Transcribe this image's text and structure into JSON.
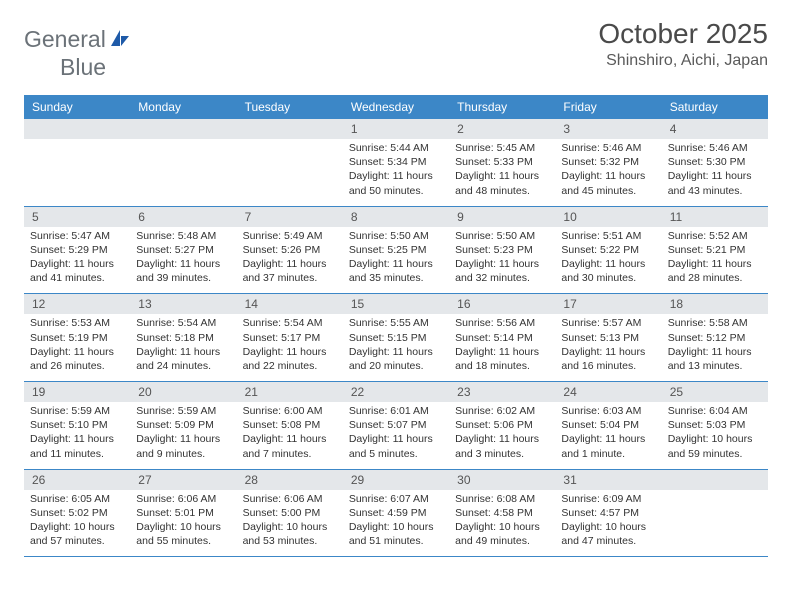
{
  "logo": {
    "part1": "General",
    "part2": "Blue"
  },
  "title": "October 2025",
  "location": "Shinshiro, Aichi, Japan",
  "colors": {
    "header_bg": "#3c87c7",
    "band_bg": "#e4e7ea",
    "rule": "#3c87c7",
    "logo_gray": "#6b7278",
    "logo_blue": "#1e5aa8"
  },
  "dayNames": [
    "Sunday",
    "Monday",
    "Tuesday",
    "Wednesday",
    "Thursday",
    "Friday",
    "Saturday"
  ],
  "weeks": [
    [
      {
        "num": "",
        "lines": []
      },
      {
        "num": "",
        "lines": []
      },
      {
        "num": "",
        "lines": []
      },
      {
        "num": "1",
        "lines": [
          "Sunrise: 5:44 AM",
          "Sunset: 5:34 PM",
          "Daylight: 11 hours",
          "and 50 minutes."
        ]
      },
      {
        "num": "2",
        "lines": [
          "Sunrise: 5:45 AM",
          "Sunset: 5:33 PM",
          "Daylight: 11 hours",
          "and 48 minutes."
        ]
      },
      {
        "num": "3",
        "lines": [
          "Sunrise: 5:46 AM",
          "Sunset: 5:32 PM",
          "Daylight: 11 hours",
          "and 45 minutes."
        ]
      },
      {
        "num": "4",
        "lines": [
          "Sunrise: 5:46 AM",
          "Sunset: 5:30 PM",
          "Daylight: 11 hours",
          "and 43 minutes."
        ]
      }
    ],
    [
      {
        "num": "5",
        "lines": [
          "Sunrise: 5:47 AM",
          "Sunset: 5:29 PM",
          "Daylight: 11 hours",
          "and 41 minutes."
        ]
      },
      {
        "num": "6",
        "lines": [
          "Sunrise: 5:48 AM",
          "Sunset: 5:27 PM",
          "Daylight: 11 hours",
          "and 39 minutes."
        ]
      },
      {
        "num": "7",
        "lines": [
          "Sunrise: 5:49 AM",
          "Sunset: 5:26 PM",
          "Daylight: 11 hours",
          "and 37 minutes."
        ]
      },
      {
        "num": "8",
        "lines": [
          "Sunrise: 5:50 AM",
          "Sunset: 5:25 PM",
          "Daylight: 11 hours",
          "and 35 minutes."
        ]
      },
      {
        "num": "9",
        "lines": [
          "Sunrise: 5:50 AM",
          "Sunset: 5:23 PM",
          "Daylight: 11 hours",
          "and 32 minutes."
        ]
      },
      {
        "num": "10",
        "lines": [
          "Sunrise: 5:51 AM",
          "Sunset: 5:22 PM",
          "Daylight: 11 hours",
          "and 30 minutes."
        ]
      },
      {
        "num": "11",
        "lines": [
          "Sunrise: 5:52 AM",
          "Sunset: 5:21 PM",
          "Daylight: 11 hours",
          "and 28 minutes."
        ]
      }
    ],
    [
      {
        "num": "12",
        "lines": [
          "Sunrise: 5:53 AM",
          "Sunset: 5:19 PM",
          "Daylight: 11 hours",
          "and 26 minutes."
        ]
      },
      {
        "num": "13",
        "lines": [
          "Sunrise: 5:54 AM",
          "Sunset: 5:18 PM",
          "Daylight: 11 hours",
          "and 24 minutes."
        ]
      },
      {
        "num": "14",
        "lines": [
          "Sunrise: 5:54 AM",
          "Sunset: 5:17 PM",
          "Daylight: 11 hours",
          "and 22 minutes."
        ]
      },
      {
        "num": "15",
        "lines": [
          "Sunrise: 5:55 AM",
          "Sunset: 5:15 PM",
          "Daylight: 11 hours",
          "and 20 minutes."
        ]
      },
      {
        "num": "16",
        "lines": [
          "Sunrise: 5:56 AM",
          "Sunset: 5:14 PM",
          "Daylight: 11 hours",
          "and 18 minutes."
        ]
      },
      {
        "num": "17",
        "lines": [
          "Sunrise: 5:57 AM",
          "Sunset: 5:13 PM",
          "Daylight: 11 hours",
          "and 16 minutes."
        ]
      },
      {
        "num": "18",
        "lines": [
          "Sunrise: 5:58 AM",
          "Sunset: 5:12 PM",
          "Daylight: 11 hours",
          "and 13 minutes."
        ]
      }
    ],
    [
      {
        "num": "19",
        "lines": [
          "Sunrise: 5:59 AM",
          "Sunset: 5:10 PM",
          "Daylight: 11 hours",
          "and 11 minutes."
        ]
      },
      {
        "num": "20",
        "lines": [
          "Sunrise: 5:59 AM",
          "Sunset: 5:09 PM",
          "Daylight: 11 hours",
          "and 9 minutes."
        ]
      },
      {
        "num": "21",
        "lines": [
          "Sunrise: 6:00 AM",
          "Sunset: 5:08 PM",
          "Daylight: 11 hours",
          "and 7 minutes."
        ]
      },
      {
        "num": "22",
        "lines": [
          "Sunrise: 6:01 AM",
          "Sunset: 5:07 PM",
          "Daylight: 11 hours",
          "and 5 minutes."
        ]
      },
      {
        "num": "23",
        "lines": [
          "Sunrise: 6:02 AM",
          "Sunset: 5:06 PM",
          "Daylight: 11 hours",
          "and 3 minutes."
        ]
      },
      {
        "num": "24",
        "lines": [
          "Sunrise: 6:03 AM",
          "Sunset: 5:04 PM",
          "Daylight: 11 hours",
          "and 1 minute."
        ]
      },
      {
        "num": "25",
        "lines": [
          "Sunrise: 6:04 AM",
          "Sunset: 5:03 PM",
          "Daylight: 10 hours",
          "and 59 minutes."
        ]
      }
    ],
    [
      {
        "num": "26",
        "lines": [
          "Sunrise: 6:05 AM",
          "Sunset: 5:02 PM",
          "Daylight: 10 hours",
          "and 57 minutes."
        ]
      },
      {
        "num": "27",
        "lines": [
          "Sunrise: 6:06 AM",
          "Sunset: 5:01 PM",
          "Daylight: 10 hours",
          "and 55 minutes."
        ]
      },
      {
        "num": "28",
        "lines": [
          "Sunrise: 6:06 AM",
          "Sunset: 5:00 PM",
          "Daylight: 10 hours",
          "and 53 minutes."
        ]
      },
      {
        "num": "29",
        "lines": [
          "Sunrise: 6:07 AM",
          "Sunset: 4:59 PM",
          "Daylight: 10 hours",
          "and 51 minutes."
        ]
      },
      {
        "num": "30",
        "lines": [
          "Sunrise: 6:08 AM",
          "Sunset: 4:58 PM",
          "Daylight: 10 hours",
          "and 49 minutes."
        ]
      },
      {
        "num": "31",
        "lines": [
          "Sunrise: 6:09 AM",
          "Sunset: 4:57 PM",
          "Daylight: 10 hours",
          "and 47 minutes."
        ]
      },
      {
        "num": "",
        "lines": []
      }
    ]
  ]
}
